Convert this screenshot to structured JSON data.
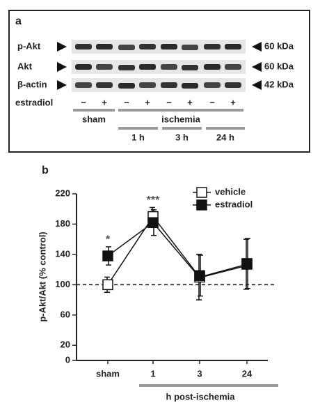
{
  "panel_a": {
    "panel_label": "a",
    "rows": [
      {
        "label": "p-Akt",
        "size": "60 kDa"
      },
      {
        "label": "Akt",
        "size": "60 kDa"
      },
      {
        "label": "β-actin",
        "size": "42 kDa"
      }
    ],
    "treatment_label": "estradiol",
    "signs": [
      "−",
      "+",
      "−",
      "+",
      "−",
      "+",
      "−",
      "+"
    ],
    "groups": [
      "sham",
      "ischemia"
    ],
    "times": [
      "1 h",
      "3 h",
      "24 h"
    ]
  },
  "chart_data": {
    "type": "line",
    "panel_label": "b",
    "y_label": "p-Akt/Akt (% control)",
    "x_label": "h post-ischemia",
    "categories": [
      "sham",
      "1",
      "3",
      "24"
    ],
    "series": [
      {
        "name": "vehicle",
        "color": "#ffffff",
        "values": [
          100,
          190,
          110,
          127
        ],
        "errors": [
          10,
          12,
          30,
          33
        ]
      },
      {
        "name": "estradiol",
        "color": "#111111",
        "values": [
          138,
          182,
          112,
          128
        ],
        "errors": [
          12,
          17,
          27,
          33
        ]
      }
    ],
    "ylim": [
      0,
      220
    ],
    "yticks": [
      0,
      20,
      60,
      100,
      140,
      180,
      220
    ],
    "reference_line": 100,
    "annotations": [
      {
        "label": "*",
        "category": "sham"
      },
      {
        "label": "***",
        "category": "1"
      }
    ],
    "legend": "top-right"
  }
}
